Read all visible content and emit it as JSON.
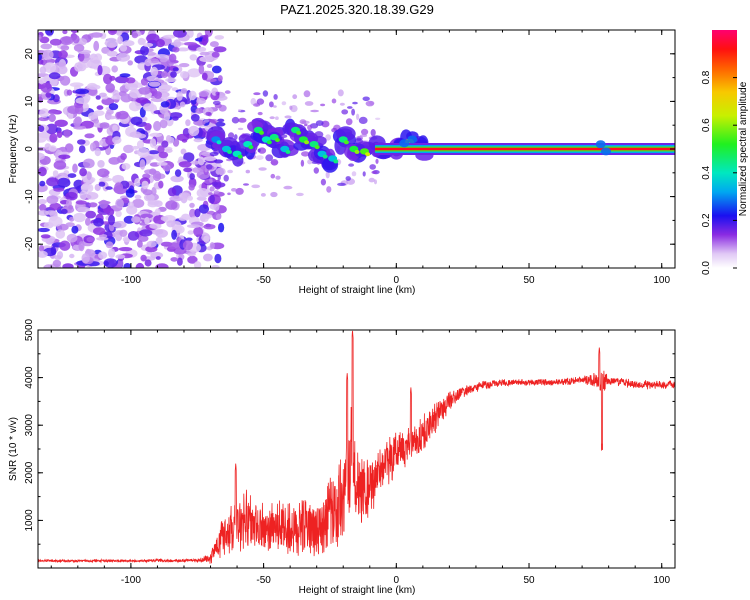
{
  "title": "PAZ1.2025.320.18.39.G29",
  "colors": {
    "snr_line": "#ee2222",
    "plot_bg": "#ffffff",
    "axis": "#000000"
  },
  "chart_data": [
    {
      "type": "heatmap",
      "title": "PAZ1.2025.320.18.39.G29",
      "xlabel": "Height of straight line (km)",
      "ylabel": "Frequency (Hz)",
      "xlim": [
        -135,
        105
      ],
      "ylim": [
        -25,
        25
      ],
      "x_ticks": [
        "-100",
        "-50",
        "0",
        "50",
        "100"
      ],
      "x_tick_values": [
        -100,
        -50,
        0,
        50,
        100
      ],
      "y_ticks": [
        "20",
        "10",
        "0",
        "-10",
        "-20"
      ],
      "y_tick_values": [
        20,
        10,
        0,
        -10,
        -20
      ],
      "colorbar": {
        "label": "Normalized spectral amplitude",
        "range": [
          0,
          1
        ],
        "ticks": [
          "0.0",
          "0.2",
          "0.4",
          "0.6",
          "0.8"
        ],
        "tick_values": [
          0.0,
          0.2,
          0.4,
          0.6,
          0.8
        ],
        "colormap": "rainbow (white-violet-blue-cyan-green-yellow-red-pink)"
      },
      "description_of_content": {
        "noise_region_x": [
          -135,
          -70
        ],
        "transition_region_x": [
          -70,
          15
        ],
        "tone_region_x": [
          15,
          105
        ],
        "tone_frequency_hz": 0
      },
      "ridge": [
        {
          "x": -68,
          "y": 2,
          "a": 0.3
        },
        {
          "x": -64,
          "y": 0,
          "a": 0.35
        },
        {
          "x": -60,
          "y": -1,
          "a": 0.4
        },
        {
          "x": -56,
          "y": 1,
          "a": 0.4
        },
        {
          "x": -52,
          "y": 4,
          "a": 0.45
        },
        {
          "x": -49,
          "y": 2,
          "a": 0.4
        },
        {
          "x": -46,
          "y": 2.5,
          "a": 0.45
        },
        {
          "x": -42,
          "y": 0,
          "a": 0.35
        },
        {
          "x": -38,
          "y": 4,
          "a": 0.45
        },
        {
          "x": -35,
          "y": 2,
          "a": 0.5
        },
        {
          "x": -31,
          "y": 1,
          "a": 0.45
        },
        {
          "x": -28,
          "y": -1,
          "a": 0.35
        },
        {
          "x": -24,
          "y": -2,
          "a": 0.35
        },
        {
          "x": -20,
          "y": 2,
          "a": 0.45
        },
        {
          "x": -16,
          "y": 0,
          "a": 0.5
        },
        {
          "x": -12,
          "y": -0.5,
          "a": 0.55
        },
        {
          "x": -6,
          "y": 0,
          "a": 0.65
        },
        {
          "x": 0,
          "y": 0,
          "a": 0.75
        },
        {
          "x": 5,
          "y": 1.5,
          "a": 0.65
        },
        {
          "x": 10,
          "y": 0,
          "a": 0.75
        }
      ]
    },
    {
      "type": "line",
      "xlabel": "Height of straight line (km)",
      "ylabel": "SNR (10 * v/v)",
      "xlim": [
        -135,
        105
      ],
      "ylim": [
        0,
        5000
      ],
      "x_ticks": [
        "-100",
        "-50",
        "0",
        "50",
        "100"
      ],
      "x_tick_values": [
        -100,
        -50,
        0,
        50,
        100
      ],
      "y_ticks": [
        "5000",
        "4000",
        "3000",
        "2000",
        "1000"
      ],
      "y_tick_values": [
        5000,
        4000,
        3000,
        2000,
        1000
      ],
      "series": [
        {
          "name": "SNR",
          "color": "#ee2222",
          "envelope_x": [
            -135,
            -100,
            -75,
            -70,
            -65,
            -60,
            -55,
            -50,
            -45,
            -40,
            -35,
            -30,
            -25,
            -20,
            -17,
            -15,
            -10,
            -5,
            0,
            5,
            10,
            15,
            20,
            25,
            30,
            40,
            50,
            60,
            70,
            75,
            77,
            80,
            90,
            100,
            105
          ],
          "envelope_mean": [
            150,
            150,
            160,
            200,
            700,
            900,
            1000,
            800,
            850,
            800,
            900,
            850,
            1100,
            1500,
            2200,
            1800,
            1700,
            2100,
            2400,
            2600,
            2800,
            3200,
            3500,
            3700,
            3800,
            3900,
            3900,
            3900,
            3950,
            3950,
            3900,
            3950,
            3850,
            3850,
            3850
          ],
          "envelope_amplitude": [
            30,
            30,
            40,
            120,
            500,
            650,
            700,
            600,
            650,
            650,
            700,
            700,
            900,
            1100,
            1400,
            1000,
            700,
            600,
            500,
            450,
            450,
            350,
            250,
            150,
            120,
            80,
            80,
            80,
            90,
            200,
            400,
            120,
            100,
            100,
            100
          ],
          "spikes": [
            {
              "x": -16.5,
              "y": 5000
            },
            {
              "x": -18.5,
              "y": 4100
            },
            {
              "x": 76.5,
              "y": 4650
            },
            {
              "x": 77.5,
              "y": 2620
            },
            {
              "x": -60.5,
              "y": 2200
            },
            {
              "x": 5.5,
              "y": 3800
            }
          ]
        }
      ]
    }
  ]
}
